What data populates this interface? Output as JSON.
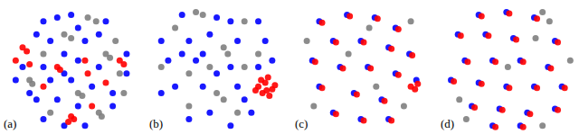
{
  "chart_data": [
    {
      "type": "scatter",
      "title": "(a)",
      "xlim": [
        0,
        100
      ],
      "ylim": [
        0,
        100
      ],
      "tick_labels": false,
      "series": [
        {
          "color": "#0000ff",
          "x": [
            30,
            40,
            50,
            55,
            25,
            35,
            60,
            70,
            15,
            30,
            45,
            55,
            70,
            90,
            10,
            35,
            50,
            65,
            80,
            25,
            40,
            55,
            45,
            30,
            60,
            80,
            90,
            20,
            75,
            45
          ],
          "y": [
            85,
            88,
            90,
            80,
            75,
            70,
            70,
            75,
            50,
            50,
            60,
            55,
            50,
            60,
            40,
            40,
            40,
            35,
            30,
            25,
            25,
            20,
            5,
            10,
            5,
            20,
            45,
            30,
            85,
            45
          ]
        },
        {
          "color": "#808080",
          "x": [
            62,
            68,
            45,
            50,
            75,
            78,
            85,
            20,
            22,
            55,
            58,
            70,
            72,
            35,
            82,
            30,
            88
          ],
          "y": [
            88,
            85,
            75,
            72,
            60,
            57,
            45,
            40,
            37,
            30,
            28,
            15,
            12,
            15,
            70,
            60,
            30
          ]
        },
        {
          "color": "#ff0000",
          "x": [
            15,
            18,
            10,
            20,
            40,
            42,
            60,
            62,
            85,
            88,
            50,
            52,
            48,
            30,
            65,
            75
          ],
          "y": [
            65,
            62,
            55,
            52,
            50,
            48,
            55,
            45,
            55,
            52,
            12,
            10,
            8,
            35,
            20,
            38
          ]
        }
      ]
    },
    {
      "type": "scatter",
      "title": "(b)",
      "xlim": [
        0,
        100
      ],
      "ylim": [
        0,
        100
      ],
      "tick_labels": false,
      "series": [
        {
          "color": "#0000ff",
          "x": [
            25,
            50,
            60,
            80,
            10,
            30,
            45,
            65,
            85,
            15,
            35,
            60,
            80,
            20,
            40,
            65,
            10,
            30,
            45,
            60,
            75,
            50,
            90,
            25,
            70,
            40
          ],
          "y": [
            90,
            88,
            85,
            85,
            70,
            70,
            75,
            70,
            70,
            55,
            55,
            50,
            50,
            35,
            35,
            35,
            30,
            10,
            15,
            5,
            15,
            45,
            55,
            60,
            25,
            60
          ]
        },
        {
          "color": "#808080",
          "x": [
            35,
            40,
            20,
            70,
            55,
            58,
            45,
            30,
            70,
            10,
            50,
            55,
            80,
            30,
            65
          ],
          "y": [
            92,
            90,
            80,
            85,
            65,
            60,
            50,
            45,
            50,
            50,
            30,
            25,
            60,
            20,
            15
          ]
        },
        {
          "color": "#ff0000",
          "x": [
            80,
            85,
            90,
            83,
            88,
            82,
            92,
            86,
            78,
            87
          ],
          "y": [
            35,
            38,
            33,
            30,
            28,
            40,
            36,
            32,
            32,
            42
          ]
        }
      ]
    },
    {
      "type": "scatter",
      "title": "(c)",
      "xlim": [
        0,
        100
      ],
      "ylim": [
        0,
        100
      ],
      "tick_labels": false,
      "series": [
        {
          "color": "#0000ff",
          "x": [
            19,
            39,
            59,
            74,
            29,
            49,
            69,
            84,
            14,
            34,
            54,
            74,
            19,
            44,
            64,
            29,
            49,
            69,
            89
          ],
          "y": [
            85,
            90,
            88,
            80,
            70,
            70,
            65,
            60,
            55,
            50,
            50,
            45,
            35,
            30,
            25,
            15,
            10,
            10,
            40
          ]
        },
        {
          "color": "#808080",
          "x": [
            85,
            10,
            60,
            40,
            80,
            15,
            55
          ],
          "y": [
            85,
            70,
            35,
            60,
            20,
            20,
            80
          ]
        },
        {
          "color": "#ff0000",
          "x": [
            21,
            41,
            61,
            76,
            31,
            51,
            71,
            86,
            16,
            36,
            56,
            76,
            21,
            46,
            66,
            31,
            51,
            71,
            85,
            88,
            90
          ],
          "y": [
            84,
            89,
            87,
            79,
            69,
            69,
            64,
            59,
            54,
            49,
            49,
            44,
            34,
            29,
            24,
            14,
            9,
            9,
            35,
            33,
            37
          ]
        }
      ]
    },
    {
      "type": "scatter",
      "title": "(d)",
      "xlim": [
        0,
        100
      ],
      "ylim": [
        0,
        100
      ],
      "tick_labels": false,
      "series": [
        {
          "color": "#0000ff",
          "x": [
            29,
            49,
            69,
            14,
            34,
            54,
            84,
            19,
            39,
            59,
            79,
            9,
            29,
            49,
            69,
            89,
            24,
            44,
            64,
            84,
            39,
            59
          ],
          "y": [
            90,
            92,
            88,
            75,
            75,
            72,
            70,
            55,
            55,
            55,
            50,
            40,
            38,
            35,
            35,
            35,
            20,
            18,
            15,
            18,
            5,
            5
          ]
        },
        {
          "color": "#808080",
          "x": [
            75,
            80,
            70,
            50,
            95,
            20,
            75,
            15
          ],
          "y": [
            92,
            85,
            72,
            50,
            55,
            10,
            5,
            25
          ]
        },
        {
          "color": "#ff0000",
          "x": [
            31,
            51,
            71,
            16,
            36,
            56,
            86,
            21,
            41,
            61,
            81,
            11,
            31,
            51,
            71,
            91,
            26,
            46,
            66,
            86,
            41,
            61
          ],
          "y": [
            89,
            91,
            87,
            74,
            74,
            71,
            69,
            54,
            54,
            54,
            49,
            39,
            37,
            34,
            34,
            34,
            19,
            17,
            14,
            17,
            4,
            4
          ]
        }
      ]
    }
  ]
}
